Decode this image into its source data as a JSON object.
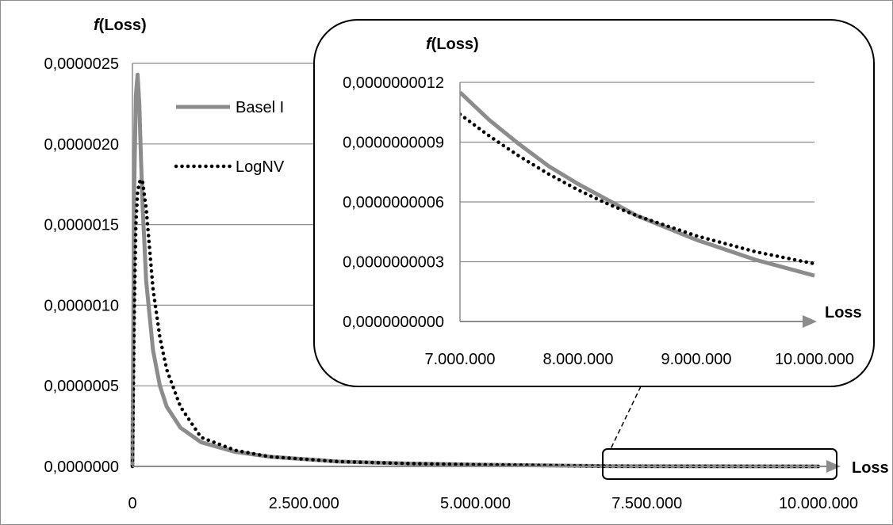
{
  "chart_data": [
    {
      "type": "line",
      "y_axis_title": "f(Loss)",
      "x_axis_title": "Loss",
      "xlim": [
        0,
        10000000
      ],
      "ylim": [
        0,
        2.5e-06
      ],
      "x_ticks": [
        0,
        2500000,
        5000000,
        7500000,
        10000000
      ],
      "x_tick_labels": [
        "0",
        "2.500.000",
        "5.000.000",
        "7.500.000",
        "10.000.000"
      ],
      "y_ticks": [
        0,
        5e-07,
        1e-06,
        1.5e-06,
        2e-06,
        2.5e-06
      ],
      "y_tick_labels": [
        "0,0000000",
        "0,0000005",
        "0,0000010",
        "0,0000015",
        "0,0000020",
        "0,0000025"
      ],
      "grid": "horizontal",
      "legend_position": "top-left",
      "series": [
        {
          "name": "Basel I",
          "style": "solid",
          "color": "#8c8c8c",
          "x": [
            0,
            25000,
            50000,
            75000,
            100000,
            125000,
            150000,
            200000,
            300000,
            400000,
            500000,
            700000,
            1000000,
            1500000,
            2000000,
            3000000,
            4000000,
            5000000,
            7000000,
            10000000
          ],
          "y": [
            0,
            1.7e-06,
            2.3e-06,
            2.43e-06,
            2.25e-06,
            1.9e-06,
            1.6e-06,
            1.15e-06,
            7.2e-07,
            5e-07,
            3.7e-07,
            2.4e-07,
            1.5e-07,
            9e-08,
            6e-08,
            3e-08,
            1.8e-08,
            1.1e-08,
            1.1e-09,
            2e-10
          ]
        },
        {
          "name": "LogNV",
          "style": "dotted",
          "color": "#000000",
          "x": [
            0,
            25000,
            50000,
            75000,
            100000,
            125000,
            150000,
            200000,
            300000,
            400000,
            500000,
            700000,
            1000000,
            1500000,
            2000000,
            3000000,
            4000000,
            5000000,
            7000000,
            10000000
          ],
          "y": [
            0,
            9e-07,
            1.5e-06,
            1.7e-06,
            1.76e-06,
            1.78e-06,
            1.76e-06,
            1.6e-06,
            1.1e-06,
            8e-07,
            6e-07,
            3.7e-07,
            1.8e-07,
            1e-07,
            6e-08,
            3e-08,
            1.8e-08,
            1.1e-08,
            1e-09,
            3e-10
          ]
        }
      ]
    },
    {
      "type": "line",
      "y_axis_title": "f(Loss)",
      "x_axis_title": "Loss",
      "xlim": [
        7000000,
        10000000
      ],
      "ylim": [
        0,
        1.2e-09
      ],
      "x_ticks": [
        7000000,
        8000000,
        9000000,
        10000000
      ],
      "x_tick_labels": [
        "7.000.000",
        "8.000.000",
        "9.000.000",
        "10.000.000"
      ],
      "y_ticks": [
        0,
        3e-10,
        6e-10,
        9e-10,
        1.2e-09
      ],
      "y_tick_labels": [
        "0,0000000000",
        "0,0000000003",
        "0,0000000006",
        "0,0000000009",
        "0,0000000012"
      ],
      "grid": "horizontal",
      "series": [
        {
          "name": "Basel I",
          "style": "solid",
          "color": "#8c8c8c",
          "x": [
            7000000,
            7250000,
            7500000,
            7750000,
            8000000,
            8250000,
            8500000,
            8750000,
            9000000,
            9250000,
            9500000,
            9750000,
            10000000
          ],
          "y": [
            1.15e-09,
            1.01e-09,
            8.9e-10,
            7.8e-10,
            6.9e-10,
            6.1e-10,
            5.3e-10,
            4.7e-10,
            4.1e-10,
            3.6e-10,
            3.1e-10,
            2.7e-10,
            2.3e-10
          ]
        },
        {
          "name": "LogNV",
          "style": "dotted",
          "color": "#000000",
          "x": [
            7000000,
            7250000,
            7500000,
            7750000,
            8000000,
            8250000,
            8500000,
            8750000,
            9000000,
            9250000,
            9500000,
            9750000,
            10000000
          ],
          "y": [
            1.04e-09,
            9.3e-10,
            8.3e-10,
            7.4e-10,
            6.6e-10,
            5.9e-10,
            5.3e-10,
            4.8e-10,
            4.3e-10,
            3.9e-10,
            3.5e-10,
            3.2e-10,
            2.9e-10
          ]
        }
      ]
    }
  ]
}
